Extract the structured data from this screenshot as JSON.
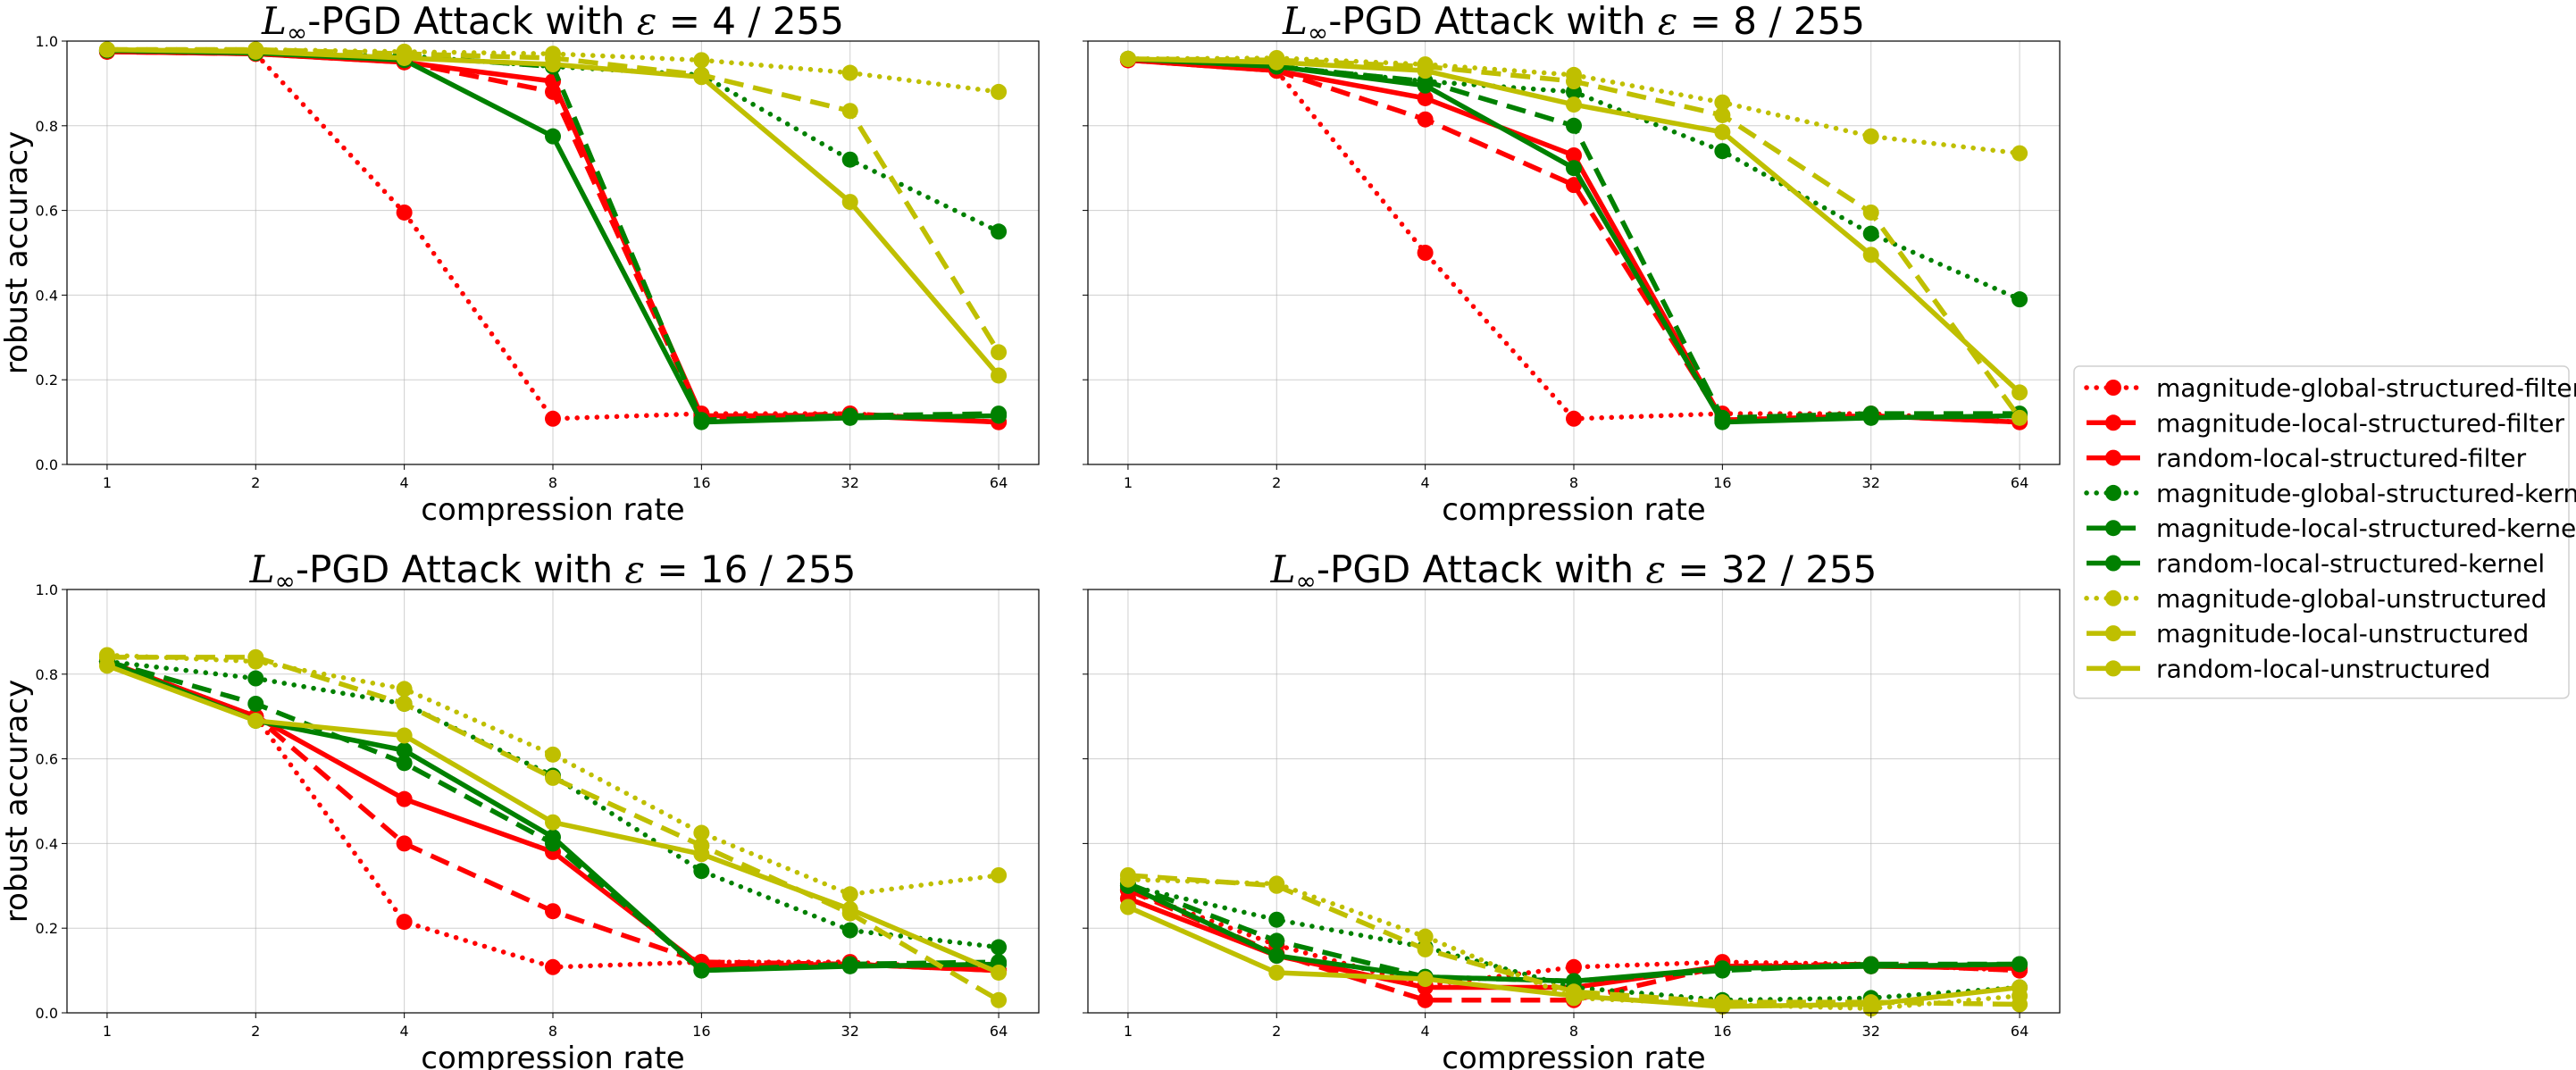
{
  "chart_data": {
    "type": "line",
    "x": [
      1,
      2,
      4,
      8,
      16,
      32,
      64
    ],
    "xscale": "log2",
    "ylim": [
      0.0,
      1.0
    ],
    "yticks": [
      "0.0",
      "0.2",
      "0.4",
      "0.6",
      "0.8",
      "1.0"
    ],
    "xticks": [
      "1",
      "2",
      "4",
      "8",
      "16",
      "32",
      "64"
    ],
    "grid": true,
    "legend_placement": "right",
    "series_styles": [
      {
        "name": "magnitude-global-structured-filter",
        "color": "#ff0000",
        "dash": "dotted"
      },
      {
        "name": "magnitude-local-structured-filter",
        "color": "#ff0000",
        "dash": "dashed"
      },
      {
        "name": "random-local-structured-filter",
        "color": "#ff0000",
        "dash": "solid"
      },
      {
        "name": "magnitude-global-structured-kernel",
        "color": "#008000",
        "dash": "dotted"
      },
      {
        "name": "magnitude-local-structured-kernel",
        "color": "#008000",
        "dash": "dashed"
      },
      {
        "name": "random-local-structured-kernel",
        "color": "#008000",
        "dash": "solid"
      },
      {
        "name": "magnitude-global-unstructured",
        "color": "#bfbf00",
        "dash": "dotted"
      },
      {
        "name": "magnitude-local-unstructured",
        "color": "#bfbf00",
        "dash": "dashed"
      },
      {
        "name": "random-local-unstructured",
        "color": "#bfbf00",
        "dash": "solid"
      }
    ],
    "panels": [
      {
        "title_prefix": "L",
        "title_sub": "∞",
        "title_mid": "-PGD Attack with ",
        "title_eps": "ε",
        "title_value": " = 4 / 255",
        "xlabel": "compression rate",
        "ylabel": "robust accuracy",
        "series": [
          {
            "values": [
              0.975,
              0.97,
              0.595,
              0.108,
              0.12,
              0.12,
              0.1
            ]
          },
          {
            "values": [
              0.975,
              0.97,
              0.95,
              0.88,
              0.11,
              0.12,
              0.1
            ]
          },
          {
            "values": [
              0.975,
              0.97,
              0.95,
              0.905,
              0.115,
              0.115,
              0.1
            ]
          },
          {
            "values": [
              0.978,
              0.972,
              0.965,
              0.94,
              0.92,
              0.72,
              0.55
            ]
          },
          {
            "values": [
              0.978,
              0.972,
              0.965,
              0.94,
              0.105,
              0.115,
              0.12
            ]
          },
          {
            "values": [
              0.978,
              0.972,
              0.955,
              0.775,
              0.1,
              0.11,
              0.115
            ]
          },
          {
            "values": [
              0.98,
              0.98,
              0.975,
              0.97,
              0.955,
              0.925,
              0.88
            ]
          },
          {
            "values": [
              0.98,
              0.98,
              0.97,
              0.96,
              0.92,
              0.835,
              0.265
            ]
          },
          {
            "values": [
              0.98,
              0.975,
              0.96,
              0.945,
              0.915,
              0.62,
              0.21
            ]
          }
        ]
      },
      {
        "title_prefix": "L",
        "title_sub": "∞",
        "title_mid": "-PGD Attack with ",
        "title_eps": "ε",
        "title_value": " = 8 / 255",
        "xlabel": "compression rate",
        "ylabel": "",
        "series": [
          {
            "values": [
              0.955,
              0.93,
              0.5,
              0.108,
              0.12,
              0.12,
              0.1
            ]
          },
          {
            "values": [
              0.955,
              0.93,
              0.815,
              0.66,
              0.105,
              0.115,
              0.1
            ]
          },
          {
            "values": [
              0.955,
              0.93,
              0.865,
              0.73,
              0.105,
              0.115,
              0.1
            ]
          },
          {
            "values": [
              0.958,
              0.94,
              0.905,
              0.88,
              0.74,
              0.545,
              0.39
            ]
          },
          {
            "values": [
              0.958,
              0.94,
              0.905,
              0.8,
              0.11,
              0.12,
              0.12
            ]
          },
          {
            "values": [
              0.958,
              0.94,
              0.895,
              0.7,
              0.1,
              0.11,
              0.115
            ]
          },
          {
            "values": [
              0.958,
              0.96,
              0.945,
              0.92,
              0.855,
              0.775,
              0.735
            ]
          },
          {
            "values": [
              0.958,
              0.955,
              0.94,
              0.905,
              0.825,
              0.595,
              0.11
            ]
          },
          {
            "values": [
              0.958,
              0.95,
              0.93,
              0.85,
              0.785,
              0.495,
              0.17
            ]
          }
        ]
      },
      {
        "title_prefix": "L",
        "title_sub": "∞",
        "title_mid": "-PGD Attack with ",
        "title_eps": "ε",
        "title_value": " = 16 / 255",
        "xlabel": "compression rate",
        "ylabel": "robust accuracy",
        "series": [
          {
            "values": [
              0.83,
              0.7,
              0.215,
              0.108,
              0.12,
              0.12,
              0.1
            ]
          },
          {
            "values": [
              0.83,
              0.7,
              0.4,
              0.24,
              0.12,
              0.115,
              0.1
            ]
          },
          {
            "values": [
              0.83,
              0.7,
              0.505,
              0.38,
              0.11,
              0.115,
              0.1
            ]
          },
          {
            "values": [
              0.83,
              0.79,
              0.73,
              0.56,
              0.335,
              0.195,
              0.155
            ]
          },
          {
            "values": [
              0.83,
              0.73,
              0.59,
              0.4,
              0.1,
              0.115,
              0.12
            ]
          },
          {
            "values": [
              0.83,
              0.69,
              0.62,
              0.415,
              0.1,
              0.11,
              0.115
            ]
          },
          {
            "values": [
              0.845,
              0.83,
              0.765,
              0.61,
              0.425,
              0.28,
              0.325
            ]
          },
          {
            "values": [
              0.84,
              0.84,
              0.73,
              0.555,
              0.395,
              0.235,
              0.03
            ]
          },
          {
            "values": [
              0.82,
              0.69,
              0.655,
              0.45,
              0.375,
              0.245,
              0.095
            ]
          }
        ]
      },
      {
        "title_prefix": "L",
        "title_sub": "∞",
        "title_mid": "-PGD Attack with ",
        "title_eps": "ε",
        "title_value": " = 32 / 255",
        "xlabel": "compression rate",
        "ylabel": "",
        "series": [
          {
            "values": [
              0.29,
              0.16,
              0.065,
              0.108,
              0.12,
              0.115,
              0.1
            ]
          },
          {
            "values": [
              0.29,
              0.14,
              0.03,
              0.03,
              0.11,
              0.115,
              0.1
            ]
          },
          {
            "values": [
              0.27,
              0.135,
              0.06,
              0.06,
              0.11,
              0.11,
              0.105
            ]
          },
          {
            "values": [
              0.3,
              0.22,
              0.155,
              0.06,
              0.03,
              0.035,
              0.06
            ]
          },
          {
            "values": [
              0.305,
              0.17,
              0.085,
              0.075,
              0.1,
              0.115,
              0.115
            ]
          },
          {
            "values": [
              0.3,
              0.135,
              0.085,
              0.075,
              0.105,
              0.11,
              0.115
            ]
          },
          {
            "values": [
              0.315,
              0.305,
              0.18,
              0.035,
              0.02,
              0.01,
              0.04
            ]
          },
          {
            "values": [
              0.325,
              0.3,
              0.15,
              0.05,
              0.025,
              0.025,
              0.02
            ]
          },
          {
            "values": [
              0.25,
              0.095,
              0.08,
              0.04,
              0.015,
              0.02,
              0.06
            ]
          }
        ]
      }
    ]
  }
}
